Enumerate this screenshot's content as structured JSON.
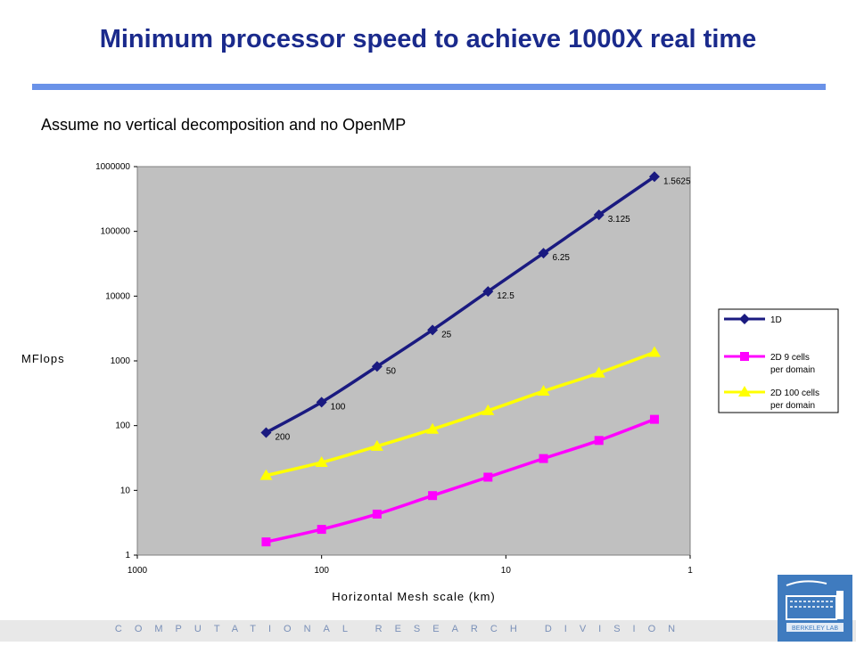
{
  "slide": {
    "title": "Minimum processor speed to achieve 1000X real time",
    "subtitle": "Assume no vertical decomposition and no OpenMP",
    "footer": "COMPUTATIONAL RESEARCH DIVISION",
    "logo_text": "BERKELEY LAB"
  },
  "colors": {
    "title": "#1a2a8c",
    "rule": "#6a92e8",
    "plot_bg": "#c0c0c0",
    "series_1d": "#1a1a80",
    "series_2d9": "#ff00ff",
    "series_2d100": "#ffff00"
  },
  "chart_data": {
    "type": "line",
    "xlabel": "Horizontal Mesh scale (km)",
    "ylabel": "MFlops",
    "x_scale": "log",
    "y_scale": "log",
    "x_reversed": true,
    "xlim": [
      1000,
      1
    ],
    "ylim": [
      1,
      1000000
    ],
    "x_ticks": [
      "1000",
      "100",
      "10",
      "1"
    ],
    "y_ticks": [
      "1000000",
      "100000",
      "10000",
      "1000",
      "100",
      "10",
      "1"
    ],
    "x": [
      200,
      100,
      50,
      25,
      12.5,
      6.25,
      3.125,
      1.5625
    ],
    "legend_position": "right",
    "grid": false,
    "series": [
      {
        "name": "1D",
        "marker": "diamond",
        "values": [
          78,
          230,
          820,
          3000,
          11800,
          46000,
          180000,
          700000
        ],
        "point_labels": [
          "200",
          "100",
          "50",
          "25",
          "12.5",
          "6.25",
          "3.125",
          "1.5625"
        ]
      },
      {
        "name": "2D 9 cells per domain",
        "marker": "square",
        "values": [
          1.6,
          2.5,
          4.3,
          8.3,
          16,
          31,
          59,
          125
        ]
      },
      {
        "name": "2D 100 cells per domain",
        "marker": "triangle",
        "values": [
          17,
          27,
          48,
          88,
          170,
          340,
          650,
          1350
        ]
      }
    ]
  }
}
